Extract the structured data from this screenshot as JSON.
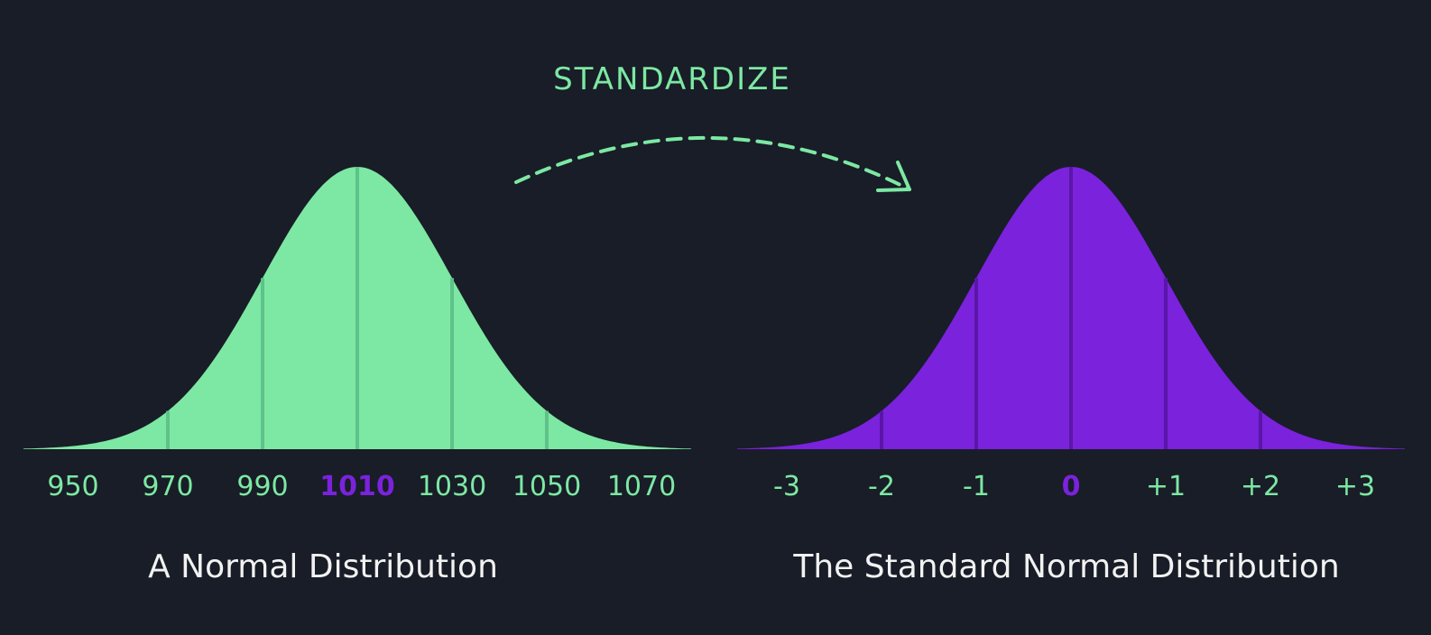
{
  "transform": {
    "label": "STANDARDIZE"
  },
  "colors": {
    "background": "#181d27",
    "green": "#7de8a3",
    "purple": "#7b22dd",
    "caption": "#f2f2f2",
    "green_gridline": "#5fc28a",
    "purple_gridline": "#5a16a8"
  },
  "left_panel": {
    "caption": "A Normal Distribution",
    "fill_color": "#7de8a3",
    "ticks": [
      "950",
      "970",
      "990",
      "1010",
      "1030",
      "1050",
      "1070"
    ],
    "highlight_tick": "1010",
    "highlight_color": "#7b22dd",
    "tick_color": "#7de8a3"
  },
  "right_panel": {
    "caption": "The Standard Normal Distribution",
    "fill_color": "#7b22dd",
    "ticks": [
      "-3",
      "-2",
      "-1",
      "0",
      "+1",
      "+2",
      "+3"
    ],
    "highlight_tick": "0",
    "highlight_color": "#7b22dd",
    "tick_color": "#7de8a3"
  }
}
